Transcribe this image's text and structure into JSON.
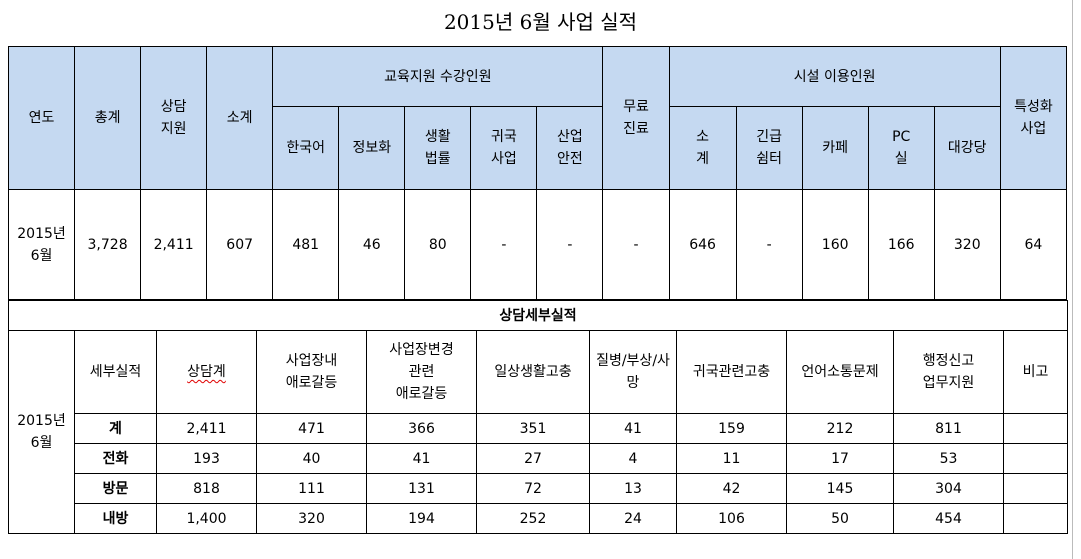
{
  "title": "2015년 6월 사업 실적",
  "summary": {
    "headers": {
      "year": "연도",
      "total": "총계",
      "counseling_l1": "상담",
      "counseling_l2": "지원",
      "subtotal": "소계",
      "education_group": "교육지원 수강인원",
      "korean": "한국어",
      "it": "정보화",
      "life_l1": "생활",
      "life_l2": "법률",
      "return_l1": "귀국",
      "return_l2": "사업",
      "safety_l1": "산업",
      "safety_l2": "안전",
      "clinic_l1": "무료",
      "clinic_l2": "진료",
      "facility_group": "시설 이용인원",
      "fsub_l1": "소",
      "fsub_l2": "계",
      "shelter_l1": "긴급",
      "shelter_l2": "쉼터",
      "cafe": "카페",
      "pc_l1": "PC",
      "pc_l2": "실",
      "hall": "대강당",
      "special_l1": "특성화",
      "special_l2": "사업"
    },
    "row": {
      "year_l1": "2015년",
      "year_l2": "6월",
      "total": "3,728",
      "counseling": "2,411",
      "subtotal": "607",
      "korean": "481",
      "it": "46",
      "life": "80",
      "return": "-",
      "safety": "-",
      "clinic": "-",
      "fsub": "646",
      "shelter": "-",
      "cafe": "160",
      "pc": "166",
      "hall": "320",
      "special": "64"
    }
  },
  "detail": {
    "section_title": "상담세부실적",
    "year_l1": "2015년",
    "year_l2": "6월",
    "headers": {
      "category": "세부실적",
      "total": "상담계",
      "workplace_l1": "사업장내",
      "workplace_l2": "애로갈등",
      "change_l1": "사업장변경",
      "change_l2": "관련",
      "change_l3": "애로갈등",
      "daily": "일상생활고충",
      "illness_l1": "질병/부상/사",
      "illness_l2": "망",
      "return": "귀국관련고충",
      "language": "언어소통문제",
      "report_l1": "행정신고",
      "report_l2": "업무지원",
      "note": "비고"
    },
    "rows": [
      {
        "label": "계",
        "total": "2,411",
        "workplace": "471",
        "change": "366",
        "daily": "351",
        "illness": "41",
        "return": "159",
        "language": "212",
        "report": "811",
        "note": ""
      },
      {
        "label": "전화",
        "total": "193",
        "workplace": "40",
        "change": "41",
        "daily": "27",
        "illness": "4",
        "return": "11",
        "language": "17",
        "report": "53",
        "note": ""
      },
      {
        "label": "방문",
        "total": "818",
        "workplace": "111",
        "change": "131",
        "daily": "72",
        "illness": "13",
        "return": "42",
        "language": "145",
        "report": "304",
        "note": ""
      },
      {
        "label": "내방",
        "total": "1,400",
        "workplace": "320",
        "change": "194",
        "daily": "252",
        "illness": "24",
        "return": "106",
        "language": "50",
        "report": "454",
        "note": ""
      }
    ]
  },
  "colors": {
    "header_fill": "#c5d9f1",
    "border": "#000000",
    "spell_underline": "#e00000"
  }
}
